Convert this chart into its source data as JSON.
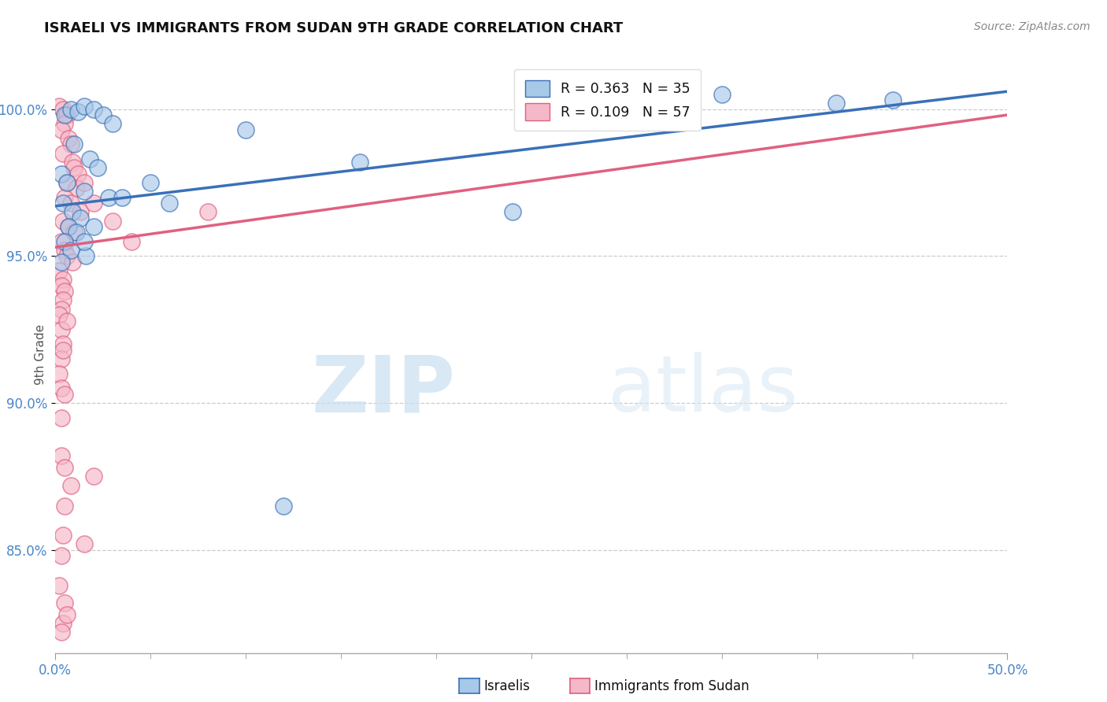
{
  "title": "ISRAELI VS IMMIGRANTS FROM SUDAN 9TH GRADE CORRELATION CHART",
  "source": "Source: ZipAtlas.com",
  "ylabel": "9th Grade",
  "xlim": [
    0.0,
    50.0
  ],
  "ylim": [
    81.5,
    101.8
  ],
  "legend_blue_r": "R = 0.363",
  "legend_blue_n": "N = 35",
  "legend_pink_r": "R = 0.109",
  "legend_pink_n": "N = 57",
  "blue_color": "#a8c8e8",
  "pink_color": "#f5b8c8",
  "trend_blue": "#3a70b8",
  "trend_pink": "#e06080",
  "watermark_zip": "ZIP",
  "watermark_atlas": "atlas",
  "background_color": "#ffffff",
  "grid_color": "#cccccc",
  "ytick_vals": [
    85.0,
    90.0,
    95.0,
    100.0
  ],
  "ytick_labels": [
    "85.0%",
    "90.0%",
    "95.0%",
    "100.0%"
  ],
  "blue_trend_x": [
    0.0,
    50.0
  ],
  "blue_trend_y": [
    96.7,
    100.6
  ],
  "pink_trend_x": [
    0.0,
    50.0
  ],
  "pink_trend_y": [
    95.3,
    99.8
  ],
  "blue_points": [
    [
      0.5,
      99.8
    ],
    [
      0.8,
      100.0
    ],
    [
      1.2,
      99.9
    ],
    [
      1.5,
      100.1
    ],
    [
      2.0,
      100.0
    ],
    [
      2.5,
      99.8
    ],
    [
      3.0,
      99.5
    ],
    [
      1.0,
      98.8
    ],
    [
      1.8,
      98.3
    ],
    [
      2.2,
      98.0
    ],
    [
      0.3,
      97.8
    ],
    [
      0.6,
      97.5
    ],
    [
      1.5,
      97.2
    ],
    [
      2.8,
      97.0
    ],
    [
      0.4,
      96.8
    ],
    [
      0.9,
      96.5
    ],
    [
      1.3,
      96.3
    ],
    [
      0.7,
      96.0
    ],
    [
      1.1,
      95.8
    ],
    [
      0.5,
      95.5
    ],
    [
      0.8,
      95.2
    ],
    [
      1.6,
      95.0
    ],
    [
      0.3,
      94.8
    ],
    [
      3.5,
      97.0
    ],
    [
      5.0,
      97.5
    ],
    [
      6.0,
      96.8
    ],
    [
      10.0,
      99.3
    ],
    [
      16.0,
      98.2
    ],
    [
      24.0,
      96.5
    ],
    [
      35.0,
      100.5
    ],
    [
      41.0,
      100.2
    ],
    [
      44.0,
      100.3
    ],
    [
      2.0,
      96.0
    ],
    [
      1.5,
      95.5
    ],
    [
      12.0,
      86.5
    ]
  ],
  "pink_points": [
    [
      0.2,
      100.1
    ],
    [
      0.4,
      100.0
    ],
    [
      0.6,
      99.8
    ],
    [
      0.5,
      99.5
    ],
    [
      0.3,
      99.3
    ],
    [
      0.7,
      99.0
    ],
    [
      0.8,
      98.8
    ],
    [
      0.4,
      98.5
    ],
    [
      0.9,
      98.2
    ],
    [
      1.0,
      98.0
    ],
    [
      1.2,
      97.8
    ],
    [
      0.6,
      97.5
    ],
    [
      1.1,
      97.3
    ],
    [
      0.5,
      97.0
    ],
    [
      0.8,
      96.8
    ],
    [
      1.3,
      96.5
    ],
    [
      0.4,
      96.2
    ],
    [
      0.7,
      96.0
    ],
    [
      1.0,
      95.8
    ],
    [
      0.3,
      95.5
    ],
    [
      0.5,
      95.2
    ],
    [
      0.6,
      95.0
    ],
    [
      0.9,
      94.8
    ],
    [
      0.2,
      94.5
    ],
    [
      0.4,
      94.2
    ],
    [
      0.3,
      94.0
    ],
    [
      0.5,
      93.8
    ],
    [
      0.4,
      93.5
    ],
    [
      0.3,
      93.2
    ],
    [
      0.2,
      93.0
    ],
    [
      0.3,
      92.5
    ],
    [
      0.4,
      92.0
    ],
    [
      0.3,
      91.5
    ],
    [
      0.2,
      91.0
    ],
    [
      0.3,
      90.5
    ],
    [
      1.5,
      97.5
    ],
    [
      2.0,
      96.8
    ],
    [
      3.0,
      96.2
    ],
    [
      4.0,
      95.5
    ],
    [
      8.0,
      96.5
    ],
    [
      0.3,
      88.2
    ],
    [
      0.5,
      87.8
    ],
    [
      0.8,
      87.2
    ],
    [
      2.0,
      87.5
    ],
    [
      0.5,
      86.5
    ],
    [
      0.4,
      85.5
    ],
    [
      0.3,
      84.8
    ],
    [
      0.2,
      83.8
    ],
    [
      0.5,
      83.2
    ],
    [
      0.4,
      82.5
    ],
    [
      0.6,
      82.8
    ],
    [
      0.3,
      82.2
    ],
    [
      1.5,
      85.2
    ],
    [
      0.3,
      89.5
    ],
    [
      0.5,
      90.3
    ],
    [
      0.4,
      91.8
    ],
    [
      0.6,
      92.8
    ]
  ]
}
